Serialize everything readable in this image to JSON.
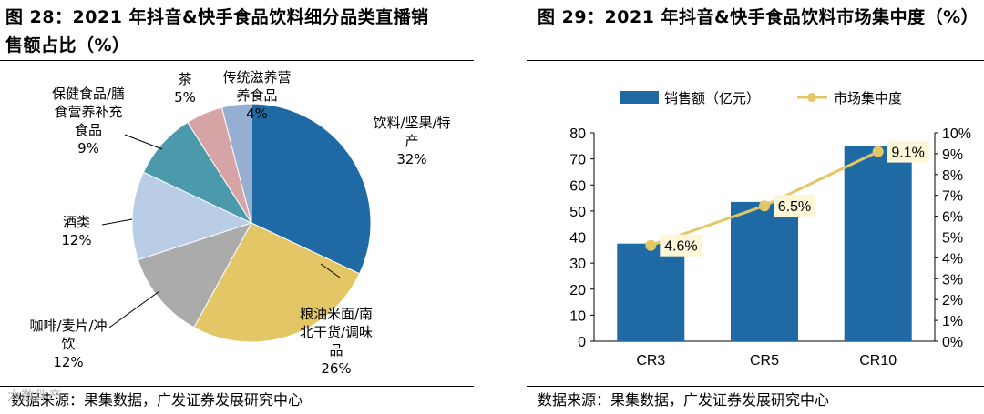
{
  "charts": [
    {
      "title_line1": "图 28：2021 年抖音&快手食品饮料细分品类直播销",
      "title_line2": "售额占比（%）",
      "source": "数据来源：果集数据，广发证券发展研究中心"
    },
    {
      "title_line1": "图 29：2021 年抖音&快手食品饮料市场集中度（%）",
      "source": "数据来源：果集数据，广发证券发展研究中心"
    }
  ],
  "watermark": "六数伴产",
  "chart_data": [
    {
      "type": "pie",
      "title": "2021 年抖音&快手食品饮料细分品类直播销售额占比（%）",
      "slices": [
        {
          "name": "饮料/坚果/特产",
          "value": 32,
          "label": "32%",
          "color": "#1f6aa5",
          "lines": [
            "饮料/坚果/特",
            "产"
          ]
        },
        {
          "name": "粮油米面/南北干货/调味品",
          "value": 26,
          "label": "26%",
          "color": "#e3c766",
          "lines": [
            "粮油米面/南",
            "北干货/调味",
            "品"
          ]
        },
        {
          "name": "咖啡/麦片/冲饮",
          "value": 12,
          "label": "12%",
          "color": "#ababab",
          "lines": [
            "咖啡/麦片/冲",
            "饮"
          ]
        },
        {
          "name": "酒类",
          "value": 12,
          "label": "12%",
          "color": "#b9cde6",
          "lines": [
            "酒类"
          ]
        },
        {
          "name": "保健食品/膳食营养补充食品",
          "value": 9,
          "label": "9%",
          "color": "#4b9aab",
          "lines": [
            "保健食品/膳",
            "食营养补充",
            "食品"
          ]
        },
        {
          "name": "茶",
          "value": 5,
          "label": "5%",
          "color": "#d6a4a4",
          "lines": [
            "茶"
          ]
        },
        {
          "name": "传统滋养营养食品",
          "value": 4,
          "label": "4%",
          "color": "#97aed3",
          "lines": [
            "传统滋养营",
            "养食品"
          ]
        }
      ]
    },
    {
      "type": "bar+line",
      "title": "2021 年抖音&快手食品饮料市场集中度（%）",
      "categories": [
        "CR3",
        "CR5",
        "CR10"
      ],
      "series": [
        {
          "name": "销售额（亿元）",
          "type": "bar",
          "axis": "left",
          "color": "#1f6aa5",
          "values": [
            37.5,
            53.5,
            75
          ]
        },
        {
          "name": "市场集中度",
          "type": "line",
          "axis": "right",
          "color": "#e3c766",
          "values": [
            4.6,
            6.5,
            9.1
          ],
          "labels": [
            "4.6%",
            "6.5%",
            "9.1%"
          ]
        }
      ],
      "y_left": {
        "min": 0,
        "max": 80,
        "ticks": [
          0,
          10,
          20,
          30,
          40,
          50,
          60,
          70,
          80
        ]
      },
      "y_right": {
        "min": 0,
        "max": 10,
        "ticks": [
          "0%",
          "1%",
          "2%",
          "3%",
          "4%",
          "5%",
          "6%",
          "7%",
          "8%",
          "9%",
          "10%"
        ]
      },
      "legend_position": "top"
    }
  ]
}
